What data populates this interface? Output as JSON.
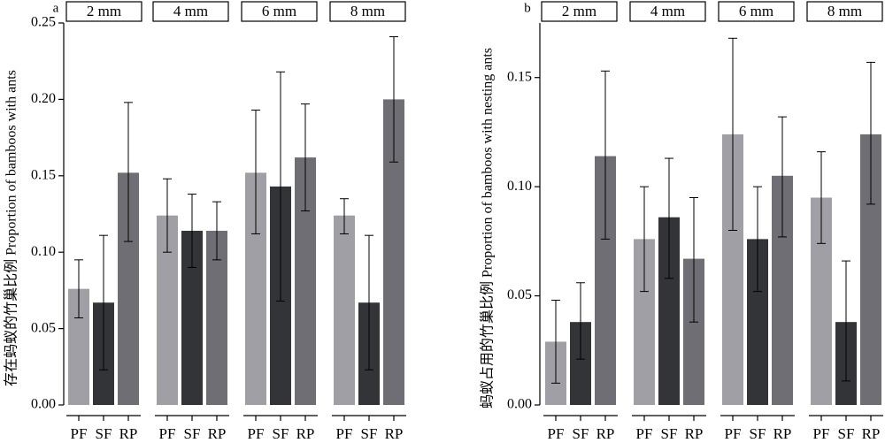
{
  "chart_data": [
    {
      "type": "bar",
      "panel_label": "a",
      "ylabel": "存在蚂蚁的竹巢比例 Proportion of bamboos with ants",
      "xlabel": "",
      "ylim": [
        0,
        0.25
      ],
      "yticks": [
        "0.00",
        "0.05",
        "0.10",
        "0.15",
        "0.20",
        "0.25"
      ],
      "ytick_values": [
        0,
        0.05,
        0.1,
        0.15,
        0.2,
        0.25
      ],
      "facets": [
        "2 mm",
        "4 mm",
        "6 mm",
        "8 mm"
      ],
      "categories": [
        "PF",
        "SF",
        "RP"
      ],
      "values": [
        [
          0.076,
          0.067,
          0.152
        ],
        [
          0.124,
          0.114,
          0.114
        ],
        [
          0.152,
          0.143,
          0.162
        ],
        [
          0.124,
          0.067,
          0.2
        ]
      ],
      "error_low": [
        [
          0.057,
          0.023,
          0.107
        ],
        [
          0.1,
          0.09,
          0.095
        ],
        [
          0.112,
          0.068,
          0.127
        ],
        [
          0.112,
          0.023,
          0.159
        ]
      ],
      "error_high": [
        [
          0.095,
          0.111,
          0.198
        ],
        [
          0.148,
          0.138,
          0.133
        ],
        [
          0.193,
          0.218,
          0.197
        ],
        [
          0.135,
          0.111,
          0.241
        ]
      ]
    },
    {
      "type": "bar",
      "panel_label": "b",
      "ylabel": "蚂蚁占用的竹巢比例 Proportion of bamboos with nesting ants",
      "xlabel": "",
      "ylim": [
        0,
        0.175
      ],
      "yticks": [
        "0.00",
        "0.05",
        "0.10",
        "0.15"
      ],
      "ytick_values": [
        0,
        0.05,
        0.1,
        0.15
      ],
      "facets": [
        "2 mm",
        "4 mm",
        "6 mm",
        "8 mm"
      ],
      "categories": [
        "PF",
        "SF",
        "RP"
      ],
      "values": [
        [
          0.029,
          0.038,
          0.114
        ],
        [
          0.076,
          0.086,
          0.067
        ],
        [
          0.124,
          0.076,
          0.105
        ],
        [
          0.095,
          0.038,
          0.124
        ]
      ],
      "error_low": [
        [
          0.01,
          0.021,
          0.076
        ],
        [
          0.052,
          0.058,
          0.038
        ],
        [
          0.08,
          0.052,
          0.077
        ],
        [
          0.074,
          0.011,
          0.092
        ]
      ],
      "error_high": [
        [
          0.048,
          0.056,
          0.153
        ],
        [
          0.1,
          0.113,
          0.095
        ],
        [
          0.168,
          0.1,
          0.132
        ],
        [
          0.116,
          0.066,
          0.157
        ]
      ]
    }
  ],
  "bar_colors": [
    "#a19fa6",
    "#333438",
    "#6f6e75"
  ],
  "error_bar_color": "#000000"
}
